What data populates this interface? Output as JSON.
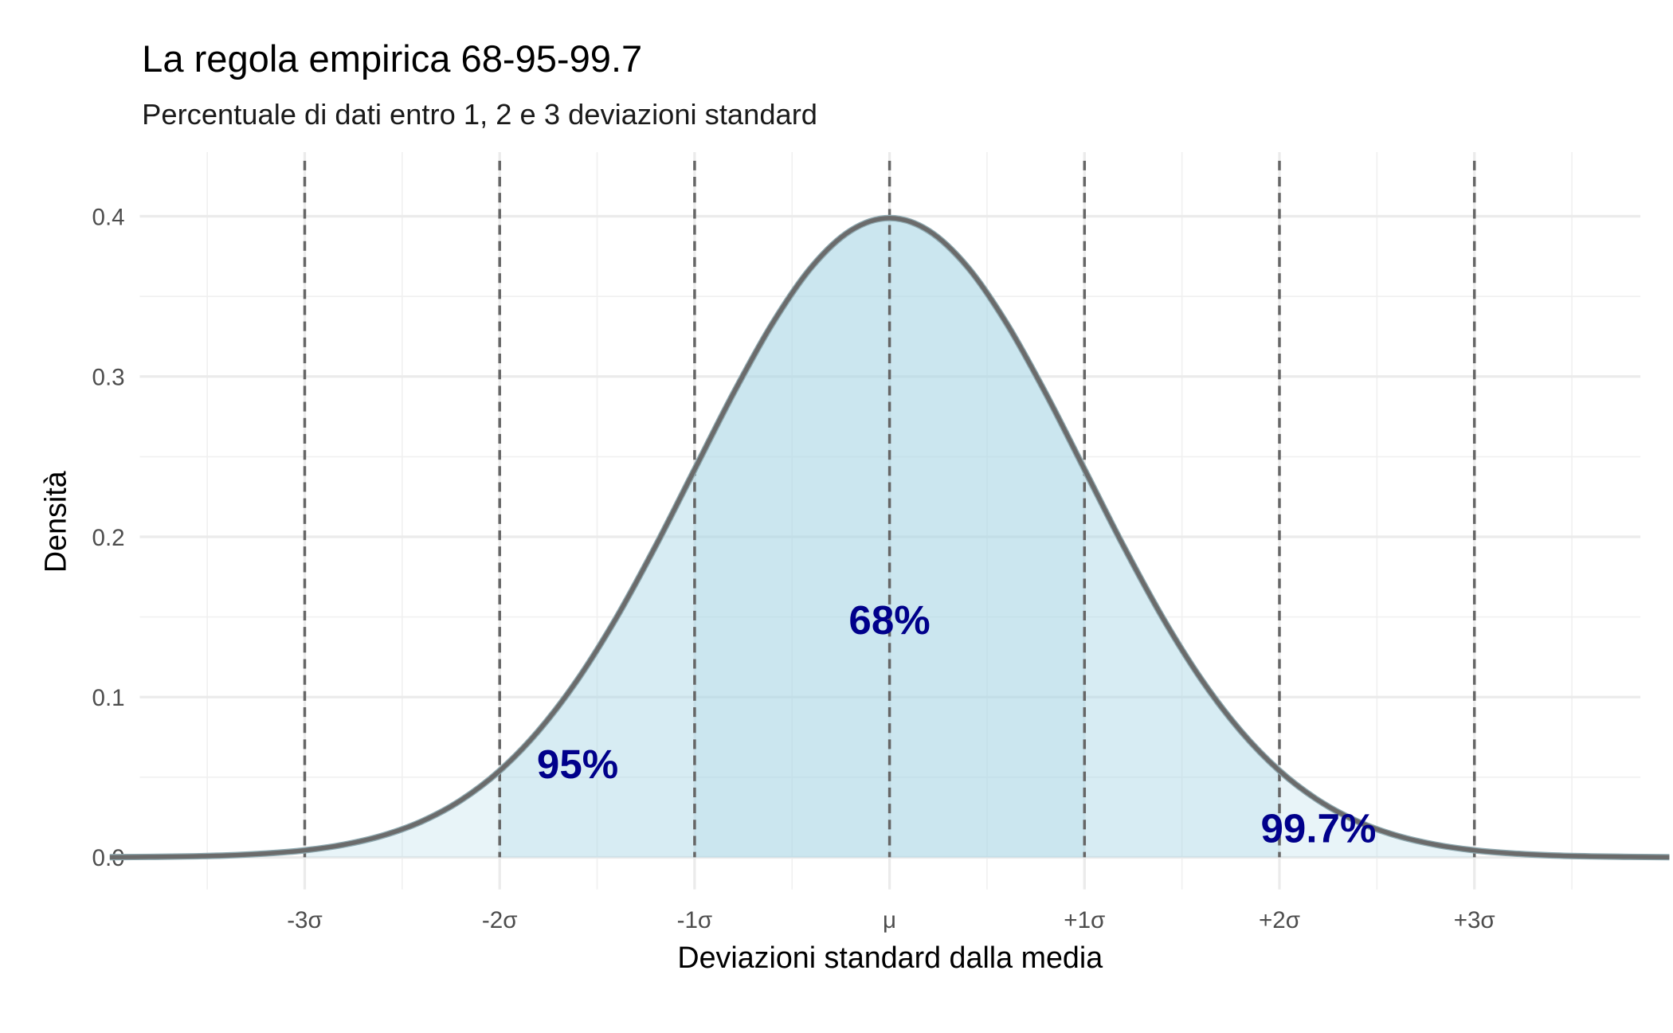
{
  "chart_data": {
    "type": "area",
    "title": "La regola empirica 68-95-99.7",
    "subtitle": "Percentuale di dati entro 1, 2 e 3 deviazioni standard",
    "x_label": "Deviazioni standard dalla media",
    "y_label": "Densità",
    "x": [
      -4.0,
      -3.8,
      -3.6,
      -3.4,
      -3.2,
      -3.0,
      -2.8,
      -2.6,
      -2.4,
      -2.2,
      -2.0,
      -1.8,
      -1.6,
      -1.4,
      -1.2,
      -1.0,
      -0.8,
      -0.6,
      -0.4,
      -0.2,
      0,
      0.2,
      0.4,
      0.6,
      0.8,
      1.0,
      1.2,
      1.4,
      1.6,
      1.8,
      2.0,
      2.2,
      2.4,
      2.6,
      2.8,
      3.0,
      3.2,
      3.4,
      3.6,
      3.8,
      4.0
    ],
    "series": [
      {
        "color": "#6b6b6b",
        "values": [
          0.0001,
          0.0003,
          0.0006,
          0.0012,
          0.0024,
          0.0044,
          0.0079,
          0.0136,
          0.0224,
          0.0355,
          0.054,
          0.079,
          0.1109,
          0.1497,
          0.1942,
          0.242,
          0.2897,
          0.3332,
          0.3683,
          0.391,
          0.3989,
          0.391,
          0.3683,
          0.3332,
          0.2897,
          0.242,
          0.1942,
          0.1497,
          0.1109,
          0.079,
          0.054,
          0.0355,
          0.0224,
          0.0136,
          0.0079,
          0.0044,
          0.0024,
          0.0012,
          0.0006,
          0.0003,
          0.0001
        ]
      }
    ],
    "regions": [
      {
        "from": -3,
        "to": 3,
        "label": "99.7%",
        "label_x": 2.2,
        "label_y": 0.018
      },
      {
        "from": -2,
        "to": 2,
        "label": "95%",
        "label_x": -1.6,
        "label_y": 0.058
      },
      {
        "from": -1,
        "to": 1,
        "label": "68%",
        "label_x": 0,
        "label_y": 0.148
      }
    ],
    "region_color": "#add8e6",
    "label_color": "#00008b",
    "xlim": [
      -4,
      4
    ],
    "ylim": [
      -0.02,
      0.44
    ],
    "xticks": [
      {
        "value": -3,
        "label": "-3σ"
      },
      {
        "value": -2,
        "label": "-2σ"
      },
      {
        "value": -1,
        "label": "-1σ"
      },
      {
        "value": 0,
        "label": "μ"
      },
      {
        "value": 1,
        "label": "+1σ"
      },
      {
        "value": 2,
        "label": "+2σ"
      },
      {
        "value": 3,
        "label": "+3σ"
      }
    ],
    "yticks": [
      {
        "value": 0,
        "label": "0.0"
      },
      0.1,
      0.2,
      0.3,
      0.4
    ],
    "minor_xticks": [
      -3.5,
      -2.5,
      -1.5,
      -0.5,
      0.5,
      1.5,
      2.5,
      3.5
    ],
    "minor_yticks": [
      0.05,
      0.15,
      0.25,
      0.35
    ],
    "grid": true,
    "vlines_at_xticks": true
  }
}
